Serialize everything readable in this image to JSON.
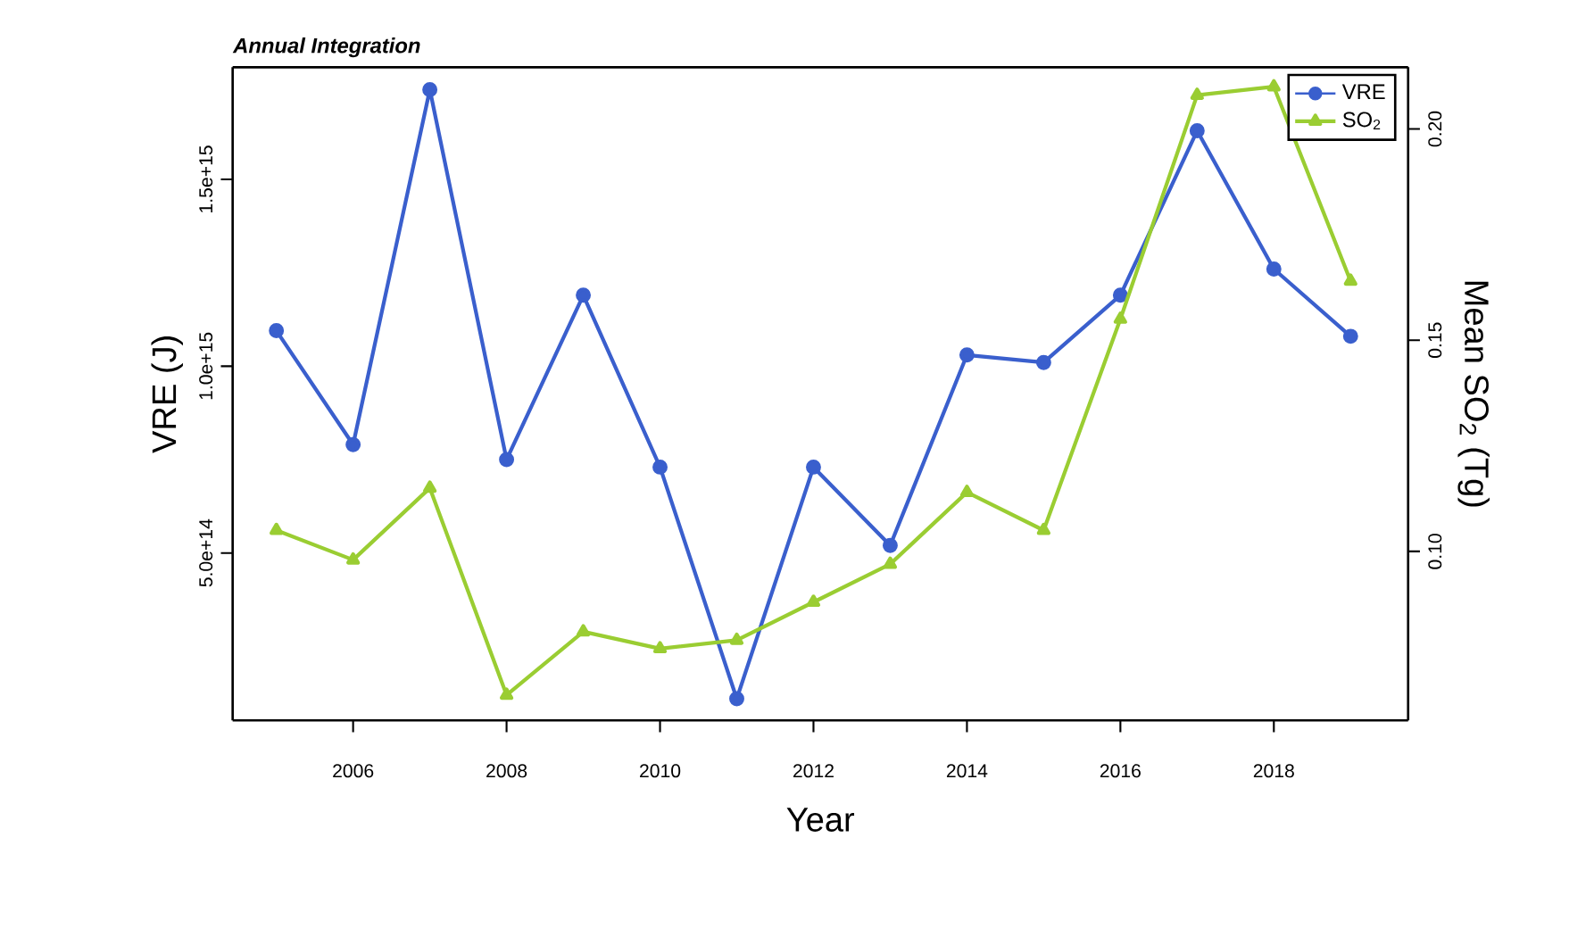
{
  "chart_data": {
    "type": "line",
    "subtitle": "Annual Integration",
    "xlabel": "Year",
    "ylabel": "VRE (J)",
    "y2label": "Mean SO$_{2}$ (Tg)",
    "x": [
      2005,
      2006,
      2007,
      2008,
      2009,
      2010,
      2011,
      2012,
      2013,
      2014,
      2015,
      2016,
      2017,
      2018,
      2019
    ],
    "series": [
      {
        "name": "VRE",
        "color": "#3a5fcd",
        "marker": "circle",
        "values": [
          1095000000000000.0,
          790000000000000.0,
          1740000000000000.0,
          750000000000000.0,
          1190000000000000.0,
          730000000000000.0,
          110000000000000.0,
          730000000000000.0,
          520000000000000.0,
          1030000000000000.0,
          1010000000000000.0,
          1190000000000000.0,
          1630000000000000.0,
          1260000000000000.0,
          1080000000000000.0
        ]
      },
      {
        "name": "SO$_{2}$",
        "color": "#9acd32",
        "marker": "triangle",
        "axis": "y2",
        "values": [
          0.105,
          0.098,
          0.115,
          0.066,
          0.081,
          0.077,
          0.079,
          0.088,
          0.097,
          0.114,
          0.105,
          0.155,
          0.208,
          0.21,
          0.164
        ]
      }
    ],
    "xlim": [
      2004.43,
      2019.75
    ],
    "xticks": [
      2006,
      2008,
      2010,
      2012,
      2014,
      2016,
      2018
    ],
    "ylim": [
      52000000000000.0,
      1800000000000000.0
    ],
    "yticks": [
      {
        "value": 500000000000000.0,
        "label": "5.0e+14"
      },
      {
        "value": 1000000000000000.0,
        "label": "1.0e+15"
      },
      {
        "value": 1500000000000000.0,
        "label": "1.5e+15"
      }
    ],
    "y2lim": [
      0.06,
      0.2146
    ],
    "y2ticks": [
      {
        "value": 0.1,
        "label": "0.10"
      },
      {
        "value": 0.15,
        "label": "0.15"
      },
      {
        "value": 0.2,
        "label": "0.20"
      }
    ],
    "legend": "top right",
    "grid": false
  }
}
